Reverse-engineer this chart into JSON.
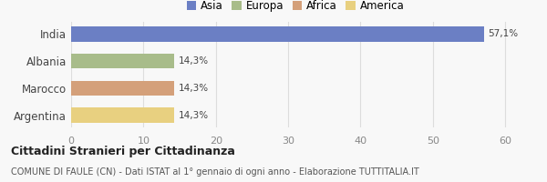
{
  "categories": [
    "Argentina",
    "Marocco",
    "Albania",
    "India"
  ],
  "values": [
    14.3,
    14.3,
    14.3,
    57.1
  ],
  "labels": [
    "14,3%",
    "14,3%",
    "14,3%",
    "57,1%"
  ],
  "bar_colors": [
    "#e8d080",
    "#d4a07a",
    "#a8bc8a",
    "#6b7fc4"
  ],
  "xlim": [
    0,
    62
  ],
  "xticks": [
    0,
    10,
    20,
    30,
    40,
    50,
    60
  ],
  "legend_items": [
    "Asia",
    "Europa",
    "Africa",
    "America"
  ],
  "legend_colors": [
    "#6b7fc4",
    "#a8bc8a",
    "#d4a07a",
    "#e8d080"
  ],
  "title": "Cittadini Stranieri per Cittadinanza",
  "subtitle": "COMUNE DI FAULE (CN) - Dati ISTAT al 1° gennaio di ogni anno - Elaborazione TUTTITALIA.IT",
  "background_color": "#f8f8f8",
  "grid_color": "#dddddd"
}
